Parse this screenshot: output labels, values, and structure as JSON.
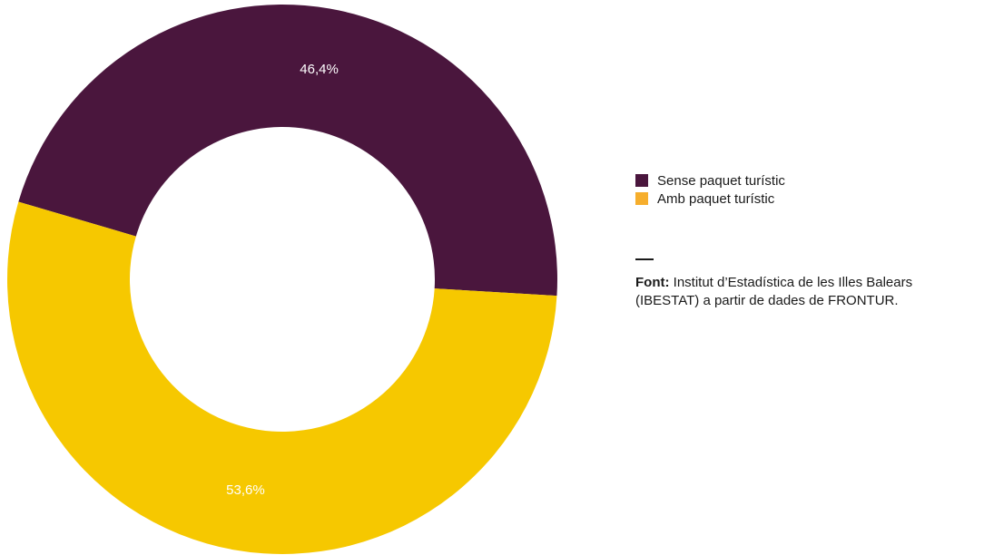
{
  "chart_data": {
    "type": "pie",
    "donut": true,
    "series": [
      {
        "name": "Sense paquet turístic",
        "value": 46.4,
        "label": "46,4%",
        "color": "#4a163d"
      },
      {
        "name": "Amb paquet turístic",
        "value": 53.6,
        "label": "53,6%",
        "color": "#f6c800"
      }
    ],
    "legend_position": "right"
  },
  "legend": {
    "items": [
      {
        "label": "Sense paquet turístic",
        "color": "#4a163d"
      },
      {
        "label": "Amb paquet turístic",
        "color": "#f6ae2d"
      }
    ]
  },
  "source": {
    "prefix": "Font:",
    "line1": " Institut d’Estadística de les Illes Balears",
    "line2": "(IBESTAT) a partir de dades de FRONTUR."
  }
}
